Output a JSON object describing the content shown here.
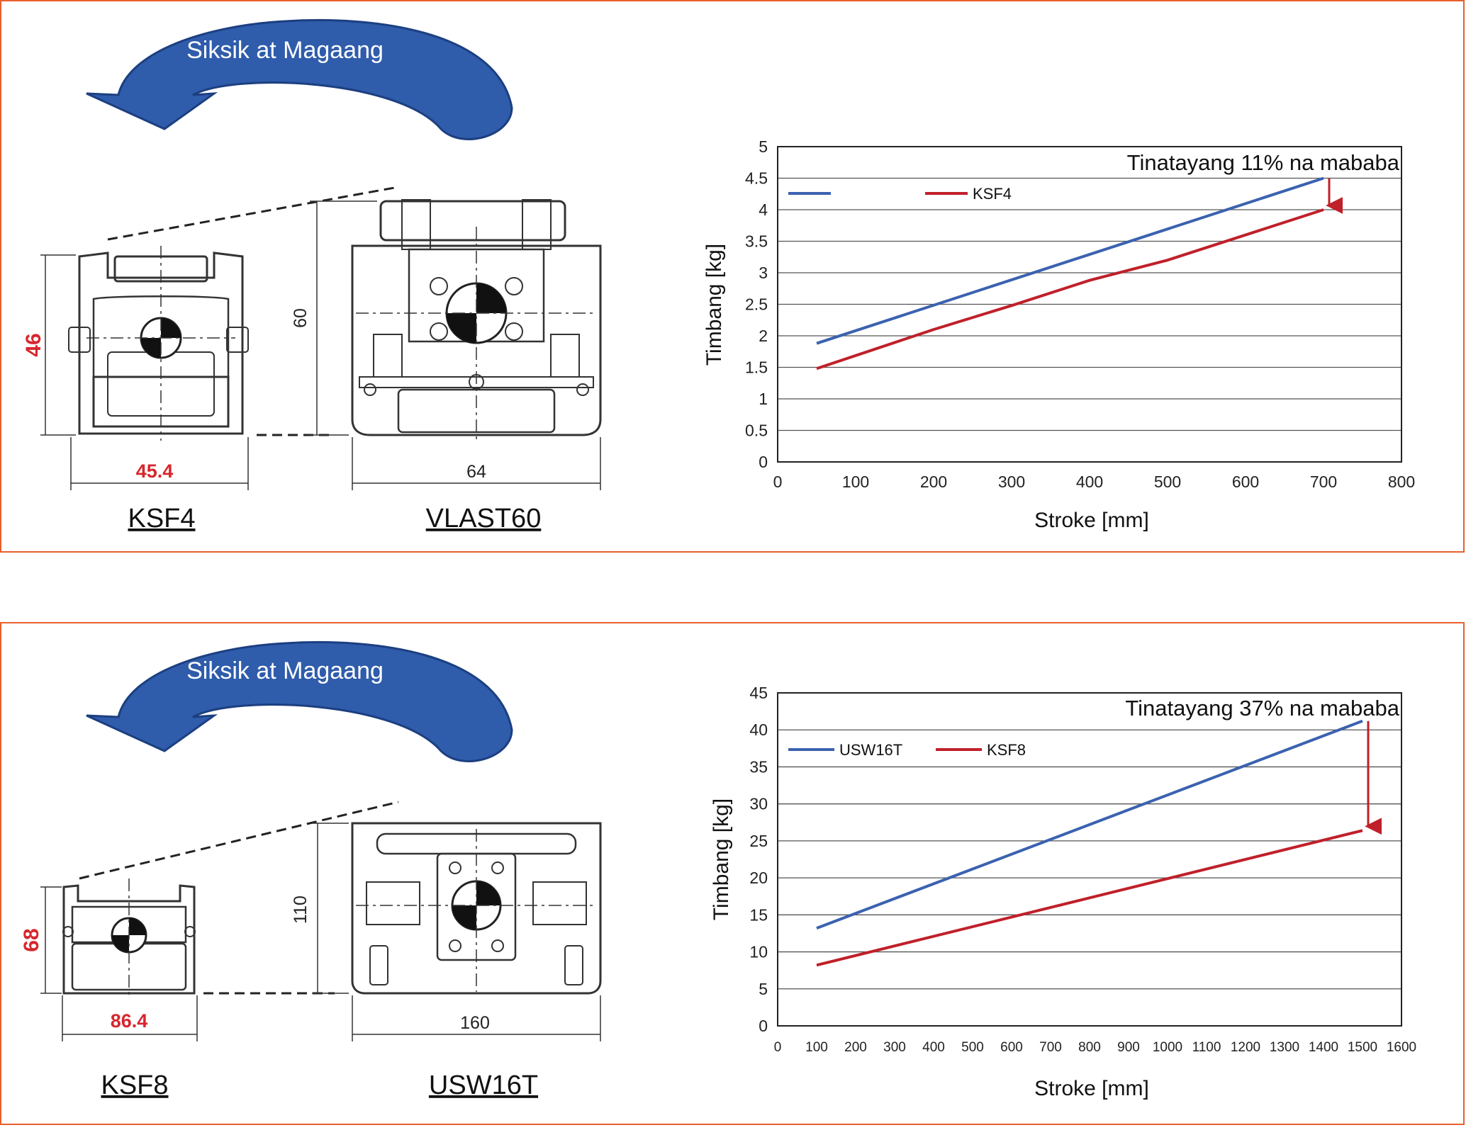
{
  "colors": {
    "border": "#e8602c",
    "arrow_fill": "#2f5cab",
    "series_blue": "#3b62b0",
    "series_red": "#c0202a",
    "dimension_red": "#d7262d"
  },
  "panels": [
    {
      "arrow_label": "Siksik at Magaang",
      "small_model": {
        "name": "KSF4",
        "height_dim": "46",
        "width_dim": "45.4"
      },
      "large_model": {
        "name": "VLAST60",
        "height_dim": "60",
        "width_dim": "64"
      }
    },
    {
      "arrow_label": "Siksik at Magaang",
      "small_model": {
        "name": "KSF8",
        "height_dim": "68",
        "width_dim": "86.4"
      },
      "large_model": {
        "name": "USW16T",
        "height_dim": "110",
        "width_dim": "160"
      }
    }
  ],
  "chart_data": [
    {
      "type": "line",
      "xlabel": "Stroke [mm]",
      "ylabel": "Timbang [kg]",
      "xlim": [
        0,
        800
      ],
      "ylim": [
        0,
        5
      ],
      "x_ticks": [
        "0",
        "100",
        "200",
        "300",
        "400",
        "500",
        "600",
        "700",
        "800"
      ],
      "y_ticks": [
        "0",
        "0.5",
        "1",
        "1.5",
        "2",
        "2.5",
        "3",
        "3.5",
        "4",
        "4.5",
        "5"
      ],
      "grid": "horizontal",
      "legend_position": "top-left",
      "annotation": "Tinatayang 11% na mababa",
      "series": [
        {
          "name": "",
          "color": "#3b62b0",
          "x": [
            50,
            700
          ],
          "y": [
            1.88,
            4.5
          ]
        },
        {
          "name": "KSF4",
          "color": "#c0202a",
          "x": [
            50,
            200,
            300,
            400,
            500,
            700
          ],
          "y": [
            1.48,
            2.1,
            2.48,
            2.88,
            3.2,
            4.0
          ]
        }
      ],
      "arrow": {
        "x": 700,
        "y_from": 4.5,
        "y_to": 4.0
      }
    },
    {
      "type": "line",
      "xlabel": "Stroke [mm]",
      "ylabel": "Timbang [kg]",
      "xlim": [
        0,
        1600
      ],
      "ylim": [
        0,
        45
      ],
      "x_ticks": [
        "0",
        "100",
        "200",
        "300",
        "400",
        "500",
        "600",
        "700",
        "800",
        "900",
        "1000",
        "1100",
        "1200",
        "1300",
        "1400",
        "1500",
        "1600"
      ],
      "y_ticks": [
        "0",
        "5",
        "10",
        "15",
        "20",
        "25",
        "30",
        "35",
        "40",
        "45"
      ],
      "grid": "horizontal",
      "legend_position": "top-left",
      "annotation": "Tinatayang 37% na mababa",
      "series": [
        {
          "name": "USW16T",
          "color": "#3b62b0",
          "x": [
            100,
            1500
          ],
          "y": [
            13.2,
            41.2
          ]
        },
        {
          "name": "KSF8",
          "color": "#c0202a",
          "x": [
            100,
            1500
          ],
          "y": [
            8.2,
            26.4
          ]
        }
      ],
      "arrow": {
        "x": 1500,
        "y_from": 41.2,
        "y_to": 26.4
      }
    }
  ]
}
